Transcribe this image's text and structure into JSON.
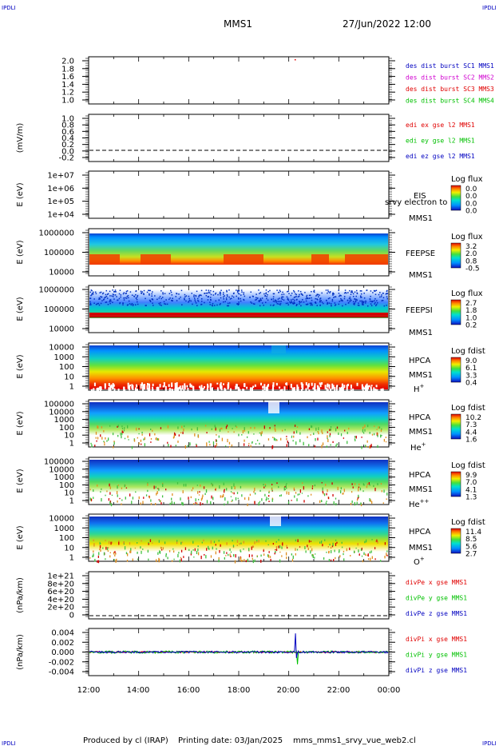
{
  "header": {
    "corner_label": "IPDLI",
    "spacecraft": "MMS1",
    "datetime": "27/Jun/2022 12:00"
  },
  "footer": {
    "produced_by": "Produced by cl (IRAP)",
    "printing_date": "Printing date: 03/Jan/2025",
    "filename": "mms_mms1_srvy_vue_web2.cl"
  },
  "x_axis": {
    "ticks": [
      "12:00",
      "14:00",
      "16:00",
      "18:00",
      "20:00",
      "22:00",
      "00:00"
    ]
  },
  "colors": {
    "red": "#e00000",
    "green": "#00c000",
    "blue": "#0000c0",
    "magenta": "#d000d0"
  },
  "chart_data": [
    {
      "type": "line",
      "name": "des dist burst",
      "ylabel": "",
      "yticks": [
        "2.0",
        "1.8",
        "1.6",
        "1.4",
        "1.2",
        "1.0"
      ],
      "ylim": [
        1.0,
        2.0
      ],
      "legend": [
        {
          "label": "des dist burst SC1 MMS1",
          "color": "#0000c0"
        },
        {
          "label": "des dist burst SC2 MMS2",
          "color": "#d000d0"
        },
        {
          "label": "des dist burst SC3 MMS3",
          "color": "#e00000"
        },
        {
          "label": "des dist burst SC4 MMS4",
          "color": "#00c000"
        }
      ]
    },
    {
      "type": "line",
      "name": "edi",
      "ylabel": "(mV/m)",
      "yticks": [
        "1.0",
        "0.8",
        "0.6",
        "0.4",
        "0.2",
        "0.0",
        "-0.2"
      ],
      "ylim": [
        -0.2,
        1.0
      ],
      "legend": [
        {
          "label": "edi ex gse l2 MMS1",
          "color": "#e00000"
        },
        {
          "label": "edi ey gse l2 MMS1",
          "color": "#00c000"
        },
        {
          "label": "edi ez gse l2 MMS1",
          "color": "#0000c0"
        }
      ]
    },
    {
      "type": "heatmap",
      "name": "EIS",
      "ylabel": "E (eV)",
      "yticks": [
        "1e+07",
        "1e+06",
        "1e+05",
        "1e+04"
      ],
      "labels": [
        "EIS",
        "MMS1"
      ],
      "overlay": "srvy electron to",
      "colorbar_title": "Log flux",
      "colorbar_ticks": [
        "0.0",
        "0.0",
        "0.0",
        "0.0"
      ]
    },
    {
      "type": "heatmap",
      "name": "FEEPSE",
      "ylabel": "E (eV)",
      "yticks": [
        "1000000",
        "100000",
        "10000"
      ],
      "labels": [
        "FEEPSE",
        "MMS1"
      ],
      "colorbar_title": "Log flux",
      "colorbar_ticks": [
        "3.2",
        "2.0",
        "0.8",
        "-0.5"
      ]
    },
    {
      "type": "heatmap",
      "name": "FEEPSI",
      "ylabel": "E (eV)",
      "yticks": [
        "1000000",
        "100000",
        "10000"
      ],
      "labels": [
        "FEEPSI",
        "MMS1"
      ],
      "colorbar_title": "Log flux",
      "colorbar_ticks": [
        "2.7",
        "1.8",
        "1.0",
        "0.2"
      ]
    },
    {
      "type": "heatmap",
      "name": "HPCA H+",
      "ylabel": "E (eV)",
      "yticks": [
        "10000",
        "1000",
        "100",
        "10",
        "1"
      ],
      "labels": [
        "HPCA",
        "MMS1"
      ],
      "species": "H",
      "species_sup": "+",
      "colorbar_title": "Log fdist",
      "colorbar_ticks": [
        "9.0",
        "6.1",
        "3.3",
        "0.4"
      ]
    },
    {
      "type": "heatmap",
      "name": "HPCA He+",
      "ylabel": "E (eV)",
      "yticks": [
        "100000",
        "10000",
        "1000",
        "100",
        "10",
        "1"
      ],
      "labels": [
        "HPCA",
        "MMS1"
      ],
      "species": "He",
      "species_sup": "+",
      "colorbar_title": "Log fdist",
      "colorbar_ticks": [
        "10.2",
        "7.3",
        "4.4",
        "1.6"
      ]
    },
    {
      "type": "heatmap",
      "name": "HPCA He++",
      "ylabel": "E (eV)",
      "yticks": [
        "100000",
        "10000",
        "1000",
        "100",
        "10",
        "1"
      ],
      "labels": [
        "HPCA",
        "MMS1"
      ],
      "species": "He",
      "species_sup": "++",
      "colorbar_title": "Log fdist",
      "colorbar_ticks": [
        "9.9",
        "7.0",
        "4.1",
        "1.3"
      ]
    },
    {
      "type": "heatmap",
      "name": "HPCA O+",
      "ylabel": "E (eV)",
      "yticks": [
        "10000",
        "1000",
        "100",
        "10",
        "1"
      ],
      "labels": [
        "HPCA",
        "MMS1"
      ],
      "species": "O",
      "species_sup": "+",
      "colorbar_title": "Log fdist",
      "colorbar_ticks": [
        "11.4",
        "8.5",
        "5.6",
        "2.7"
      ]
    },
    {
      "type": "line",
      "name": "divPe",
      "ylabel": "(nPa/km)",
      "yticks": [
        "1e+21",
        "8e+20",
        "6e+20",
        "4e+20",
        "2e+20",
        "0"
      ],
      "ylim": [
        0,
        1e+21
      ],
      "legend": [
        {
          "label": "divPe x gse MMS1",
          "color": "#e00000"
        },
        {
          "label": "divPe y gse MMS1",
          "color": "#00c000"
        },
        {
          "label": "divPe z gse MMS1",
          "color": "#0000c0"
        }
      ]
    },
    {
      "type": "line",
      "name": "divPi",
      "ylabel": "(nPa/km)",
      "yticks": [
        "0.004",
        "0.002",
        "0.000",
        "-0.002",
        "-0.004"
      ],
      "ylim": [
        -0.004,
        0.004
      ],
      "legend": [
        {
          "label": "divPi x gse MMS1",
          "color": "#e00000"
        },
        {
          "label": "divPi y gse MMS1",
          "color": "#00c000"
        },
        {
          "label": "divPi z gse MMS1",
          "color": "#0000c0"
        }
      ]
    }
  ]
}
